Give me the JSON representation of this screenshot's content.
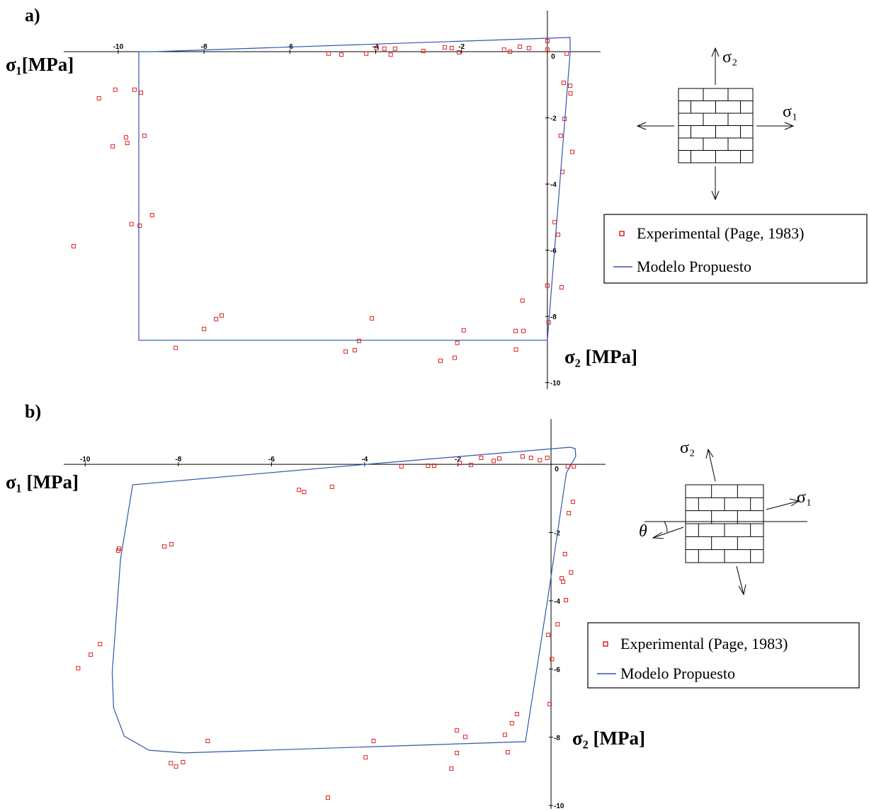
{
  "chart_data": [
    {
      "type": "scatter",
      "panel_label": "a)",
      "x_label": "σ₁[MPa]",
      "y_label": "σ₂ [MPa]",
      "xlim": [
        -11.27,
        1.24
      ],
      "ylim": [
        -10.2,
        1.24
      ],
      "xticks": [
        -10,
        -8,
        -6,
        -4,
        -2,
        0
      ],
      "yticks": [
        -2,
        -4,
        -6,
        -8,
        -10
      ],
      "series": [
        {
          "name": "Experimental (Page, 1983)",
          "type": "scatter",
          "color": "#e02020",
          "x": [
            -5.1,
            -4.8,
            -4.22,
            -3.98,
            -3.8,
            -3.65,
            -3.55,
            -2.89,
            -2.39,
            -2.23,
            -2.06,
            -1.01,
            -0.87,
            -0.64,
            -0.43,
            0,
            0,
            0.45,
            -10.45,
            -10.07,
            -9.62,
            -9.47,
            -9.39,
            -9.82,
            -9.79,
            -10.13,
            -9.21,
            -9.69,
            -9.5,
            -11.04,
            0.38,
            0.53,
            0.54,
            0.4,
            0.31,
            0.58,
            0.35,
            0.17,
            0.25,
            0,
            0.33,
            -0.58,
            0.03,
            -7.59,
            -7.72,
            -8.0,
            -8.66,
            -4.09,
            -4.39,
            -4.49,
            -4.7,
            -1.95,
            -2.1,
            -2.16,
            -2.49,
            -0.74,
            -0.56,
            -0.73
          ],
          "values": [
            -0.06,
            -0.09,
            -0.06,
            0.11,
            0.09,
            -0.09,
            0.09,
            0.02,
            0.13,
            0.11,
            -0.02,
            0.06,
            0,
            0.15,
            0.11,
            0.32,
            0.06,
            -0.06,
            -1.41,
            -1.15,
            -1.15,
            -1.24,
            -2.54,
            -2.59,
            -2.76,
            -2.86,
            -4.94,
            -5.21,
            -5.26,
            -5.88,
            -0.94,
            -1.03,
            -1.26,
            -2.03,
            -2.54,
            -3.03,
            -3.63,
            -5.15,
            -5.53,
            -7.07,
            -7.12,
            -7.52,
            -8.18,
            -7.97,
            -8.08,
            -8.38,
            -8.95,
            -8.06,
            -8.74,
            -9.02,
            -9.06,
            -8.42,
            -8.8,
            -9.25,
            -9.34,
            -8.44,
            -8.44,
            -9.0
          ]
        },
        {
          "name": "Modelo Propuesto",
          "type": "line",
          "color": "#3355aa",
          "x": [
            -9.52,
            -9.52,
            0,
            0.53,
            0.53,
            -9.16
          ],
          "values": [
            0,
            -8.72,
            -8.72,
            -0.04,
            0.43,
            0
          ]
        }
      ]
    },
    {
      "type": "scatter",
      "panel_label": "b)",
      "x_label": "σ₁ [MPa]",
      "y_label": "σ₂ [MPa]",
      "xlim": [
        -10.46,
        1.17
      ],
      "ylim": [
        -10.1,
        1.33
      ],
      "xticks": [
        -10,
        -8,
        -6,
        -4,
        -2,
        0
      ],
      "yticks": [
        -2,
        -4,
        -6,
        -8,
        -10
      ],
      "series": [
        {
          "name": "Experimental (Page, 1983)",
          "type": "scatter",
          "color": "#e02020",
          "x": [
            -3.21,
            -2.64,
            -2.51,
            -1.96,
            -1.72,
            -1.5,
            -1.23,
            -1.11,
            -0.61,
            -0.43,
            -0.24,
            -0.08,
            0.36,
            0.49,
            -5.41,
            -5.3,
            -4.7,
            -9.27,
            -9.29,
            -8.3,
            -8.15,
            0.38,
            0.47,
            0.3,
            0.43,
            0.23,
            0.26,
            0.32,
            0.14,
            -0.06,
            0.02,
            -0.03,
            -9.68,
            -9.88,
            -10.15,
            -7.37,
            -8.16,
            -8.05,
            -7.9,
            -3.81,
            -3.98,
            -4.79,
            -2.02,
            -1.84,
            -2.02,
            -2.14,
            -0.73,
            -0.84,
            -0.99,
            -0.93
          ],
          "values": [
            -0.06,
            -0.04,
            -0.04,
            0.04,
            -0.02,
            0.19,
            0.1,
            0.17,
            0.23,
            0.19,
            0.12,
            0.19,
            -0.06,
            -0.06,
            -0.75,
            -0.81,
            -0.66,
            -2.47,
            -2.53,
            -2.41,
            -2.34,
            -1.43,
            -1.1,
            -2.63,
            -3.17,
            -3.34,
            -3.44,
            -3.98,
            -4.69,
            -5.0,
            -5.71,
            -7.03,
            -5.27,
            -5.58,
            -5.98,
            -8.11,
            -8.76,
            -8.86,
            -8.73,
            -8.11,
            -8.59,
            -9.77,
            -7.8,
            -7.99,
            -8.46,
            -8.92,
            -7.32,
            -7.59,
            -7.93,
            -8.44
          ]
        },
        {
          "name": "Modelo Propuesto",
          "type": "line",
          "color": "#3355aa",
          "x": [
            -8.98,
            -9.24,
            -9.42,
            -9.39,
            -9.16,
            -8.63,
            -7.87,
            -0.55,
            -0.08,
            0.33,
            0.53,
            0.52,
            0.41,
            -3.97
          ],
          "values": [
            -0.6,
            -2.78,
            -6.1,
            -7.14,
            -7.97,
            -8.38,
            -8.46,
            -8.13,
            -4.02,
            -0.25,
            0.23,
            0.46,
            0.5,
            0
          ]
        }
      ]
    }
  ],
  "diagrams": [
    {
      "sigma_2": "σ₂",
      "sigma_1": "σ₁"
    },
    {
      "sigma_2": "σ₂",
      "sigma_1": "σ₁",
      "angle": "θ"
    }
  ]
}
